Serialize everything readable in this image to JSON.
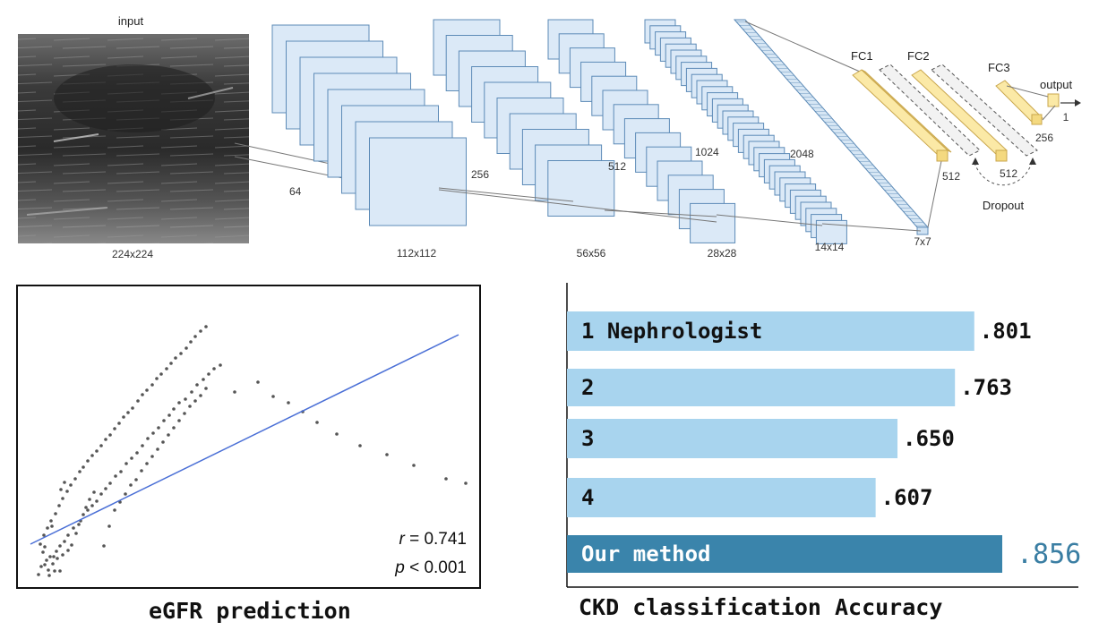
{
  "architecture": {
    "input_label": "input",
    "input_size": "224x224",
    "blocks": [
      {
        "channels": "64",
        "size": "112x112"
      },
      {
        "channels": "256",
        "size": "56x56"
      },
      {
        "channels": "512",
        "size": "28x28"
      },
      {
        "channels": "1024",
        "size": "14x14"
      },
      {
        "channels": "2048",
        "size": "7x7"
      }
    ],
    "fc_layers": [
      {
        "name": "FC1",
        "units": "512"
      },
      {
        "name": "FC2",
        "units": "512"
      },
      {
        "name": "FC3",
        "units": "256"
      }
    ],
    "output_label": "output",
    "output_units": "1",
    "dropout_label": "Dropout"
  },
  "egfr": {
    "caption": "eGFR prediction",
    "r_label": "r",
    "r_value": " = 0.741",
    "p_label": "p",
    "p_value": " < 0.001"
  },
  "ckd": {
    "caption": "CKD classification Accuracy"
  },
  "chart_data": [
    {
      "type": "scatter",
      "title": "eGFR prediction",
      "xlabel": "",
      "ylabel": "",
      "grid": false,
      "trendline": true,
      "r": 0.741,
      "p": "< 0.001",
      "points": [
        [
          13,
          322
        ],
        [
          16,
          313
        ],
        [
          22,
          306
        ],
        [
          26,
          302
        ],
        [
          20,
          291
        ],
        [
          28,
          268
        ],
        [
          38,
          227
        ],
        [
          42,
          219
        ],
        [
          25,
          323
        ],
        [
          31,
          318
        ],
        [
          37,
          318
        ],
        [
          29,
          310
        ],
        [
          34,
          304
        ],
        [
          40,
          300
        ],
        [
          46,
          295
        ],
        [
          50,
          289
        ],
        [
          55,
          276
        ],
        [
          60,
          262
        ],
        [
          66,
          247
        ],
        [
          70,
          238
        ],
        [
          75,
          230
        ],
        [
          18,
          297
        ],
        [
          20,
          311
        ],
        [
          24,
          317
        ],
        [
          30,
          302
        ],
        [
          33,
          296
        ],
        [
          37,
          290
        ],
        [
          42,
          285
        ],
        [
          46,
          278
        ],
        [
          52,
          270
        ],
        [
          58,
          266
        ],
        [
          63,
          255
        ],
        [
          68,
          250
        ],
        [
          73,
          245
        ],
        [
          78,
          240
        ],
        [
          83,
          232
        ],
        [
          88,
          226
        ],
        [
          93,
          220
        ],
        [
          99,
          212
        ],
        [
          105,
          207
        ],
        [
          111,
          198
        ],
        [
          117,
          192
        ],
        [
          123,
          186
        ],
        [
          129,
          178
        ],
        [
          135,
          170
        ],
        [
          141,
          164
        ],
        [
          147,
          158
        ],
        [
          153,
          150
        ],
        [
          159,
          144
        ],
        [
          164,
          137
        ],
        [
          170,
          130
        ],
        [
          177,
          126
        ],
        [
          184,
          118
        ],
        [
          190,
          110
        ],
        [
          197,
          104
        ],
        [
          203,
          98
        ],
        [
          209,
          92
        ],
        [
          216,
          88
        ],
        [
          15,
          288
        ],
        [
          19,
          278
        ],
        [
          23,
          270
        ],
        [
          27,
          262
        ],
        [
          32,
          254
        ],
        [
          36,
          245
        ],
        [
          40,
          237
        ],
        [
          45,
          229
        ],
        [
          49,
          222
        ],
        [
          54,
          215
        ],
        [
          59,
          207
        ],
        [
          63,
          202
        ],
        [
          68,
          195
        ],
        [
          73,
          189
        ],
        [
          78,
          184
        ],
        [
          83,
          178
        ],
        [
          88,
          171
        ],
        [
          93,
          166
        ],
        [
          98,
          159
        ],
        [
          103,
          153
        ],
        [
          108,
          146
        ],
        [
          113,
          141
        ],
        [
          118,
          136
        ],
        [
          124,
          128
        ],
        [
          129,
          121
        ],
        [
          134,
          116
        ],
        [
          140,
          110
        ],
        [
          145,
          103
        ],
        [
          150,
          98
        ],
        [
          156,
          92
        ],
        [
          161,
          86
        ],
        [
          166,
          80
        ],
        [
          172,
          75
        ],
        [
          178,
          69
        ],
        [
          183,
          62
        ],
        [
          188,
          56
        ],
        [
          194,
          50
        ],
        [
          200,
          45
        ],
        [
          86,
          290
        ],
        [
          92,
          268
        ],
        [
          98,
          250
        ],
        [
          104,
          241
        ],
        [
          110,
          232
        ],
        [
          116,
          222
        ],
        [
          122,
          216
        ],
        [
          128,
          206
        ],
        [
          134,
          198
        ],
        [
          140,
          190
        ],
        [
          146,
          182
        ],
        [
          152,
          174
        ],
        [
          158,
          166
        ],
        [
          164,
          158
        ],
        [
          170,
          150
        ],
        [
          176,
          142
        ],
        [
          182,
          134
        ],
        [
          188,
          128
        ],
        [
          194,
          122
        ],
        [
          200,
          114
        ],
        [
          232,
          118
        ],
        [
          258,
          107
        ],
        [
          275,
          123
        ],
        [
          292,
          130
        ],
        [
          308,
          140
        ],
        [
          324,
          152
        ],
        [
          346,
          165
        ],
        [
          372,
          178
        ],
        [
          402,
          188
        ],
        [
          432,
          200
        ],
        [
          468,
          215
        ],
        [
          490,
          220
        ]
      ]
    },
    {
      "type": "bar",
      "title": "CKD classification Accuracy",
      "orientation": "horizontal",
      "categories": [
        "1 Nephrologist",
        "2",
        "3",
        "4",
        "Our method"
      ],
      "values": [
        0.801,
        0.763,
        0.65,
        0.607,
        0.856
      ],
      "value_labels": [
        ".801",
        ".763",
        ".650",
        ".607",
        ".856"
      ],
      "colors": [
        "#a8d4ee",
        "#a8d4ee",
        "#a8d4ee",
        "#a8d4ee",
        "#3a84ab"
      ],
      "label_colors": [
        "#111111",
        "#111111",
        "#111111",
        "#111111",
        "#3a7ea3"
      ]
    }
  ]
}
